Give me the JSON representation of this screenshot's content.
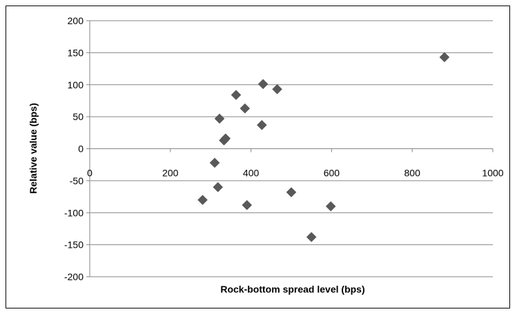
{
  "chart_data": {
    "type": "scatter",
    "title": "",
    "xlabel": "Rock-bottom spread level (bps)",
    "ylabel": "Relative value (bps)",
    "xlim": [
      0,
      1000
    ],
    "ylim": [
      -200,
      200
    ],
    "x_ticks": [
      0,
      200,
      400,
      600,
      800,
      1000
    ],
    "y_ticks": [
      200,
      150,
      100,
      50,
      0,
      -50,
      -100,
      -150,
      -200
    ],
    "grid": "horizontal",
    "legend": "none",
    "marker": "diamond",
    "colors": {
      "marker": "#595959",
      "grid": "#868686",
      "axis": "#868686"
    },
    "series": [
      {
        "points": [
          {
            "x": 280,
            "y": -80
          },
          {
            "x": 310,
            "y": -22
          },
          {
            "x": 318,
            "y": -60
          },
          {
            "x": 322,
            "y": 47
          },
          {
            "x": 333,
            "y": 13
          },
          {
            "x": 337,
            "y": 16
          },
          {
            "x": 363,
            "y": 84
          },
          {
            "x": 385,
            "y": 63
          },
          {
            "x": 390,
            "y": -88
          },
          {
            "x": 427,
            "y": 37
          },
          {
            "x": 430,
            "y": 101
          },
          {
            "x": 465,
            "y": 93
          },
          {
            "x": 500,
            "y": -68
          },
          {
            "x": 550,
            "y": -138
          },
          {
            "x": 598,
            "y": -90
          },
          {
            "x": 880,
            "y": 143
          }
        ]
      }
    ]
  }
}
